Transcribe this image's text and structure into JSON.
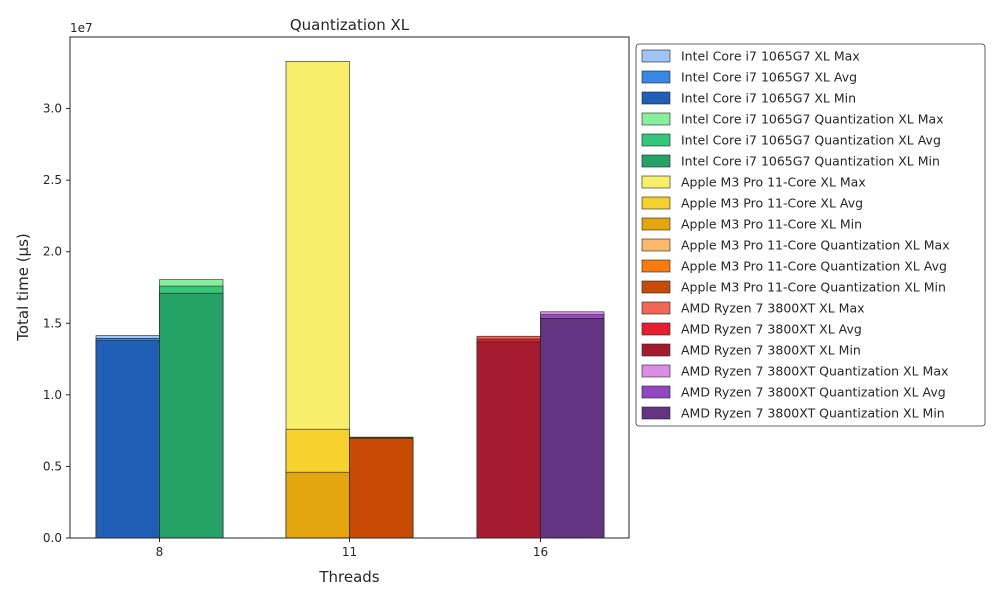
{
  "chart_data": {
    "type": "bar",
    "stacking": "overlaid min/avg/max per CPU, grouped by thread count",
    "title": "Quantization XL",
    "xlabel": "Threads",
    "ylabel": "Total time (µs)",
    "y_scale_label": "1e7",
    "ylim": [
      0,
      35000000
    ],
    "yticks": [
      0,
      5000000,
      10000000,
      15000000,
      20000000,
      25000000,
      30000000
    ],
    "ytick_labels": [
      "0.0",
      "0.5",
      "1.0",
      "1.5",
      "2.0",
      "2.5",
      "3.0"
    ],
    "categories": [
      "8",
      "11",
      "16"
    ],
    "grid": false,
    "legend_position": "outside-right",
    "groups": [
      {
        "threads": "8",
        "cpu": "Intel Core i7 1065G7",
        "bars": [
          {
            "variant": "XL",
            "max": 14150000,
            "avg": 13950000,
            "min": 13800000,
            "colors": {
              "max": "#9ec4f2",
              "avg": "#3a86e6",
              "min": "#1f5fb8"
            }
          },
          {
            "variant": "Quantization XL",
            "max": 18050000,
            "avg": 17600000,
            "min": 17100000,
            "colors": {
              "max": "#86ef9c",
              "avg": "#34c77a",
              "min": "#25a366"
            }
          }
        ]
      },
      {
        "threads": "11",
        "cpu": "Apple M3 Pro 11-Core",
        "bars": [
          {
            "variant": "XL",
            "max": 33300000,
            "avg": 7600000,
            "min": 4600000,
            "colors": {
              "max": "#f7ee6b",
              "avg": "#f6d12e",
              "min": "#e3a60c"
            }
          },
          {
            "variant": "Quantization XL",
            "max": 7050000,
            "avg": 7000000,
            "min": 6950000,
            "colors": {
              "max": "#fbb86a",
              "avg": "#f97a0e",
              "min": "#c84a03"
            }
          }
        ]
      },
      {
        "threads": "16",
        "cpu": "AMD Ryzen 7 3800XT",
        "bars": [
          {
            "variant": "XL",
            "max": 14100000,
            "avg": 13900000,
            "min": 13700000,
            "colors": {
              "max": "#f0675a",
              "avg": "#e21f2a",
              "min": "#a61c2e"
            }
          },
          {
            "variant": "Quantization XL",
            "max": 15800000,
            "avg": 15600000,
            "min": 15350000,
            "colors": {
              "max": "#dc8ce3",
              "avg": "#9346c0",
              "min": "#633482"
            }
          }
        ]
      }
    ],
    "legend": [
      {
        "label": "Intel Core i7 1065G7 XL Max",
        "color": "#9ec4f2"
      },
      {
        "label": "Intel Core i7 1065G7 XL Avg",
        "color": "#3a86e6"
      },
      {
        "label": "Intel Core i7 1065G7 XL Min",
        "color": "#1f5fb8"
      },
      {
        "label": "Intel Core i7 1065G7 Quantization XL Max",
        "color": "#86ef9c"
      },
      {
        "label": "Intel Core i7 1065G7 Quantization XL Avg",
        "color": "#34c77a"
      },
      {
        "label": "Intel Core i7 1065G7 Quantization XL Min",
        "color": "#25a366"
      },
      {
        "label": "Apple M3 Pro 11-Core XL Max",
        "color": "#f7ee6b"
      },
      {
        "label": "Apple M3 Pro 11-Core XL Avg",
        "color": "#f6d12e"
      },
      {
        "label": "Apple M3 Pro 11-Core XL Min",
        "color": "#e3a60c"
      },
      {
        "label": "Apple M3 Pro 11-Core Quantization XL Max",
        "color": "#fbb86a"
      },
      {
        "label": "Apple M3 Pro 11-Core Quantization XL Avg",
        "color": "#f97a0e"
      },
      {
        "label": "Apple M3 Pro 11-Core Quantization XL Min",
        "color": "#c84a03"
      },
      {
        "label": "AMD Ryzen 7 3800XT XL Max",
        "color": "#f0675a"
      },
      {
        "label": "AMD Ryzen 7 3800XT XL Avg",
        "color": "#e21f2a"
      },
      {
        "label": "AMD Ryzen 7 3800XT XL Min",
        "color": "#a61c2e"
      },
      {
        "label": "AMD Ryzen 7 3800XT Quantization XL Max",
        "color": "#dc8ce3"
      },
      {
        "label": "AMD Ryzen 7 3800XT Quantization XL Avg",
        "color": "#9346c0"
      },
      {
        "label": "AMD Ryzen 7 3800XT Quantization XL Min",
        "color": "#633482"
      }
    ]
  }
}
